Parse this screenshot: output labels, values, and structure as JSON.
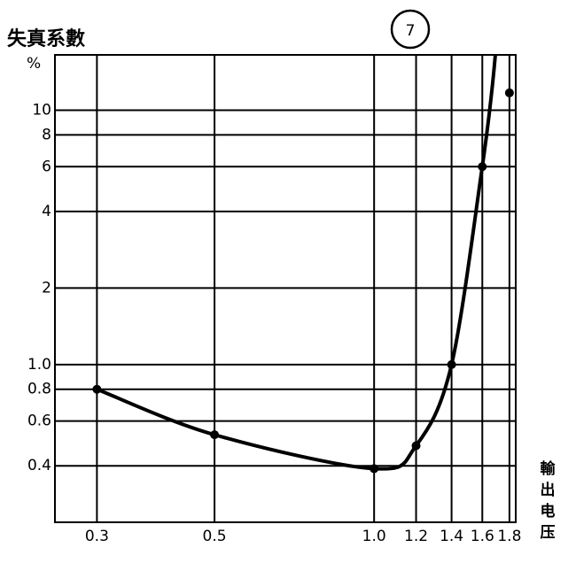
{
  "chart_data": {
    "type": "line",
    "title": "失真系數",
    "y_unit": "%",
    "figure_number": "7",
    "x_label": "輸出电压",
    "x": [
      0.3,
      0.5,
      1.0,
      1.2,
      1.4,
      1.6,
      1.8
    ],
    "series": [
      {
        "name": null,
        "color": "#000000",
        "values": [
          0.8,
          0.53,
          0.39,
          0.48,
          1.0,
          6,
          11.7
        ]
      }
    ],
    "x_log": true,
    "y_log": true,
    "xlim": [
      0.25,
      1.85
    ],
    "ylim": [
      0.24,
      16.5
    ],
    "xticks": [
      0.3,
      0.5,
      {
        "value": 1.0,
        "label": "1.0"
      },
      1.2,
      1.4,
      1.6,
      1.8
    ],
    "yticks": [
      0.4,
      0.6,
      0.8,
      {
        "value": 1.0,
        "label": "1.0"
      },
      2,
      4,
      6,
      8,
      10
    ],
    "grid": true
  }
}
